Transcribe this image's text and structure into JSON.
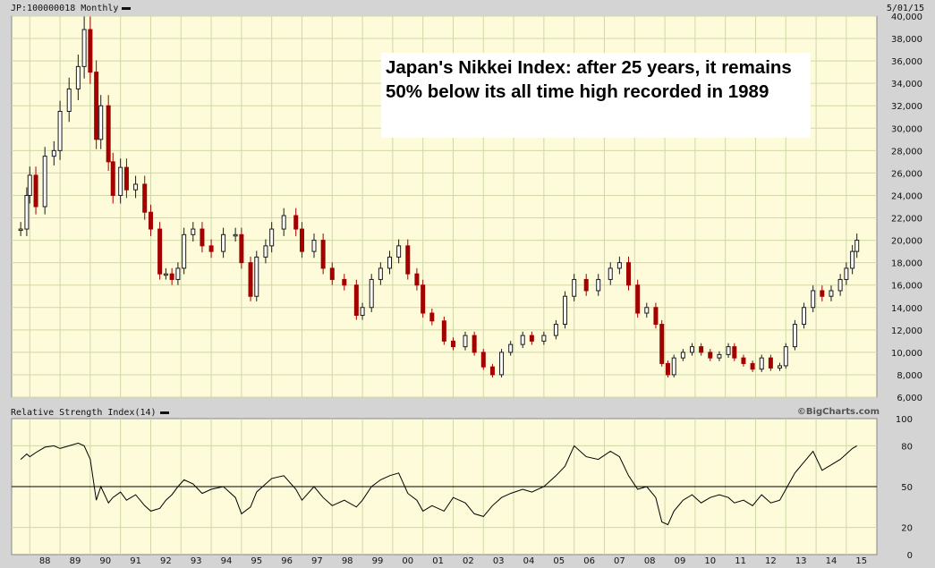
{
  "header": {
    "symbol_label": "JP:100000018 Monthly",
    "date_label": "5/01/15",
    "rsi_label": "Relative Strength Index(14)",
    "copyright": "©BigCharts.com"
  },
  "annotation": "Japan's Nikkei Index: after 25 years, it remains 50% below its all time high recorded in 1989",
  "colors": {
    "panel_bg": "#fdfbd9",
    "grid": "#cfd8a6",
    "up": "#1a1a1a",
    "down": "#a30000",
    "frame": "#d4d4d4"
  },
  "chart_data": [
    {
      "type": "candlestick",
      "title": "",
      "xlabel": "",
      "ylabel": "",
      "ylim": [
        6000,
        40000
      ],
      "y_ticks": [
        "40,000",
        "38,000",
        "36,000",
        "34,000",
        "32,000",
        "30,000",
        "28,000",
        "26,000",
        "24,000",
        "22,000",
        "20,000",
        "18,000",
        "16,000",
        "14,000",
        "12,000",
        "10,000",
        "8,000",
        "6,000"
      ],
      "x_ticks": [
        "88",
        "89",
        "90",
        "91",
        "92",
        "93",
        "94",
        "95",
        "96",
        "97",
        "98",
        "99",
        "00",
        "01",
        "02",
        "03",
        "04",
        "05",
        "06",
        "07",
        "08",
        "09",
        "10",
        "11",
        "12",
        "13",
        "14",
        "15"
      ],
      "grid": true,
      "x": [
        1987.7,
        1987.9,
        1988.0,
        1988.2,
        1988.5,
        1988.8,
        1989.0,
        1989.3,
        1989.6,
        1989.8,
        1990.0,
        1990.2,
        1990.35,
        1990.6,
        1990.75,
        1991.0,
        1991.2,
        1991.5,
        1991.8,
        1992.0,
        1992.3,
        1992.5,
        1992.7,
        1992.9,
        1993.1,
        1993.4,
        1993.7,
        1994.0,
        1994.4,
        1994.8,
        1995.0,
        1995.3,
        1995.5,
        1995.8,
        1996.0,
        1996.4,
        1996.8,
        1997.0,
        1997.4,
        1997.7,
        1998.0,
        1998.4,
        1998.8,
        1999.0,
        1999.3,
        1999.6,
        1999.9,
        2000.2,
        2000.5,
        2000.8,
        2001.0,
        2001.3,
        2001.7,
        2002.0,
        2002.4,
        2002.7,
        2003.0,
        2003.3,
        2003.6,
        2003.9,
        2004.3,
        2004.6,
        2005.0,
        2005.4,
        2005.7,
        2006.0,
        2006.4,
        2006.8,
        2007.2,
        2007.5,
        2007.8,
        2008.1,
        2008.4,
        2008.7,
        2008.9,
        2009.1,
        2009.3,
        2009.6,
        2009.9,
        2010.2,
        2010.5,
        2010.8,
        2011.1,
        2011.3,
        2011.6,
        2011.9,
        2012.2,
        2012.5,
        2012.8,
        2013.0,
        2013.3,
        2013.6,
        2013.9,
        2014.2,
        2014.5,
        2014.8,
        2015.0,
        2015.2,
        2015.35
      ],
      "series": [
        {
          "values": [
            21000,
            24000,
            25800,
            23000,
            27500,
            28000,
            31500,
            33500,
            35500,
            38800,
            35000,
            29000,
            32000,
            27000,
            24000,
            26500,
            24500,
            25000,
            22500,
            21000,
            17000,
            17000,
            16500,
            17500,
            20500,
            21000,
            19500,
            19000,
            20500,
            20500,
            18000,
            15000,
            18500,
            19500,
            21000,
            22200,
            21000,
            19000,
            20000,
            17500,
            16500,
            16000,
            13300,
            14000,
            16500,
            17500,
            18500,
            19500,
            17000,
            16000,
            13500,
            12800,
            11000,
            10500,
            11500,
            10000,
            8700,
            8000,
            10000,
            10700,
            11500,
            11000,
            11500,
            12500,
            15000,
            16500,
            15500,
            16500,
            17500,
            18000,
            16000,
            13500,
            14000,
            12500,
            9000,
            8000,
            9500,
            10000,
            10500,
            10000,
            9500,
            9800,
            10500,
            9500,
            9000,
            8500,
            9500,
            8600,
            8800,
            10500,
            12500,
            14000,
            15500,
            15000,
            15500,
            16500,
            17500,
            19000,
            20000
          ]
        },
        {
          "name": "",
          "values": [
            70,
            74,
            72,
            75,
            79,
            80,
            78,
            80,
            82,
            80,
            70,
            40,
            50,
            38,
            42,
            46,
            40,
            44,
            36,
            32,
            34,
            40,
            44,
            50,
            55,
            52,
            45,
            48,
            50,
            42,
            30,
            35,
            46,
            52,
            56,
            58,
            48,
            40,
            50,
            42,
            36,
            40,
            35,
            40,
            50,
            55,
            58,
            60,
            45,
            40,
            32,
            36,
            32,
            42,
            38,
            30,
            28,
            36,
            42,
            45,
            48,
            46,
            50,
            58,
            65,
            80,
            72,
            70,
            76,
            72,
            58,
            48,
            50,
            42,
            24,
            22,
            32,
            40,
            44,
            38,
            42,
            44,
            42,
            38,
            40,
            36,
            44,
            38,
            40,
            48,
            60,
            68,
            76,
            62,
            66,
            70,
            74,
            78,
            80
          ]
        }
      ]
    },
    {
      "type": "line",
      "title": "",
      "xlabel": "",
      "ylabel": "",
      "ylim": [
        0,
        100
      ],
      "y_ticks": [
        "100",
        "80",
        "50",
        "20",
        "0"
      ],
      "reference_line": 50
    }
  ]
}
